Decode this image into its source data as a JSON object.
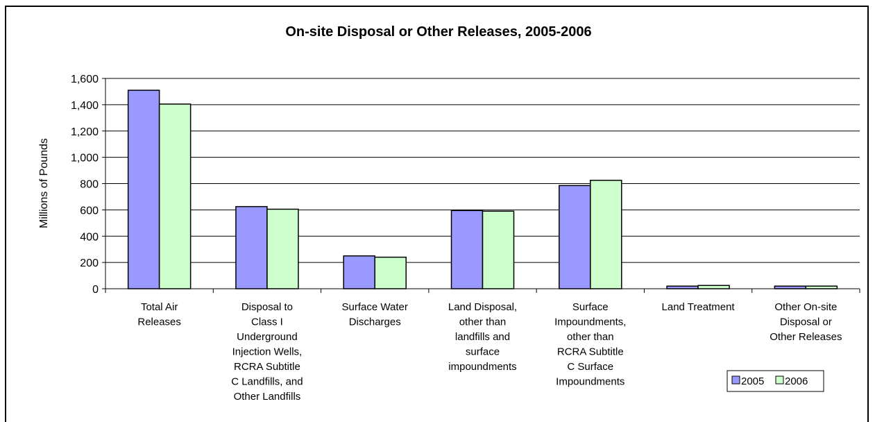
{
  "chart_data": {
    "type": "bar",
    "title": "On-site Disposal or Other Releases, 2005-2006",
    "ylabel": "Millions of Pounds",
    "xlabel": "",
    "ylim": [
      0,
      1600
    ],
    "yticks": [
      0,
      200,
      400,
      600,
      800,
      1000,
      1200,
      1400,
      1600
    ],
    "ytick_labels": [
      "0",
      "200",
      "400",
      "600",
      "800",
      "1,000",
      "1,200",
      "1,400",
      "1,600"
    ],
    "grid": true,
    "legend_position": "bottom-right",
    "categories": [
      [
        "Total Air",
        "Releases"
      ],
      [
        "Disposal to",
        "Class I",
        "Underground",
        "Injection Wells,",
        "RCRA Subtitle",
        "C Landfills, and",
        "Other Landfills"
      ],
      [
        "Surface Water",
        "Discharges"
      ],
      [
        "Land Disposal,",
        "other than",
        "landfills and",
        "surface",
        "impoundments"
      ],
      [
        "Surface",
        "Impoundments,",
        "other than",
        "RCRA Subtitle",
        "C Surface",
        "Impoundments"
      ],
      [
        "Land Treatment"
      ],
      [
        "Other On-site",
        "Disposal or",
        "Other Releases"
      ]
    ],
    "series": [
      {
        "name": "2005",
        "color": "#9999ff",
        "values": [
          1510,
          625,
          250,
          595,
          785,
          20,
          20
        ]
      },
      {
        "name": "2006",
        "color": "#ccffcc",
        "values": [
          1405,
          605,
          240,
          590,
          825,
          25,
          20
        ]
      }
    ]
  }
}
